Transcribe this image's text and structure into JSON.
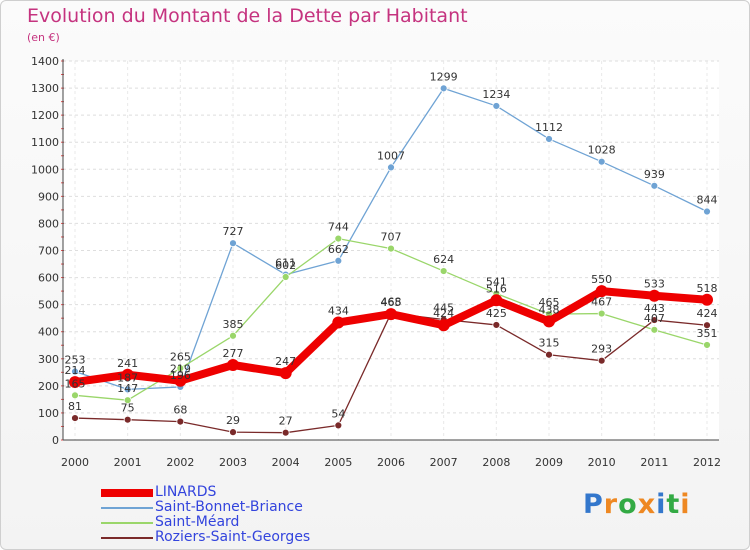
{
  "chart_data": {
    "type": "line",
    "title": "Evolution du Montant de la Dette par Habitant",
    "unit_label": "(en €)",
    "x": [
      "2000",
      "2001",
      "2002",
      "2003",
      "2004",
      "2005",
      "2006",
      "2007",
      "2008",
      "2009",
      "2010",
      "2011",
      "2012"
    ],
    "ylim": [
      0,
      1400
    ],
    "yticks": [
      0,
      100,
      200,
      300,
      400,
      500,
      600,
      700,
      800,
      900,
      1000,
      1100,
      1200,
      1300,
      1400
    ],
    "grid": true,
    "legend_position": "bottom-left",
    "series": [
      {
        "name": "LINARDS",
        "color": "#ee0000",
        "values": [
          214,
          241,
          219,
          277,
          247,
          434,
          465,
          424,
          516,
          438,
          550,
          533,
          518
        ]
      },
      {
        "name": "Saint-Bonnet-Briance",
        "color": "#6fa3d4",
        "values": [
          253,
          187,
          196,
          727,
          611,
          662,
          1007,
          1299,
          1234,
          1112,
          1028,
          939,
          844
        ]
      },
      {
        "name": "Saint-Méard",
        "color": "#9ad66a",
        "values": [
          165,
          147,
          265,
          385,
          602,
          744,
          707,
          624,
          541,
          465,
          467,
          407,
          351
        ]
      },
      {
        "name": "Roziers-Saint-Georges",
        "color": "#7a2a2a",
        "values": [
          81,
          75,
          68,
          29,
          27,
          54,
          468,
          445,
          425,
          315,
          293,
          443,
          424
        ]
      }
    ]
  },
  "logo": {
    "text": "Proxiti"
  }
}
